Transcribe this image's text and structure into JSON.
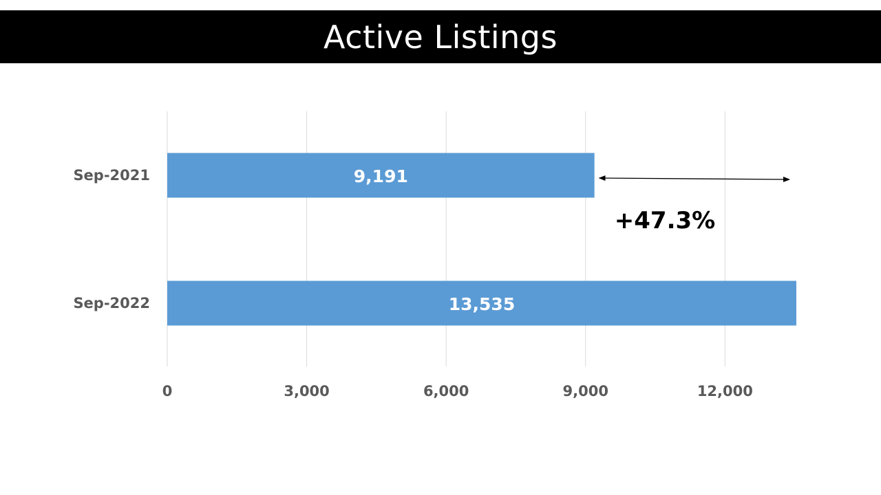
{
  "colors": {
    "bar": "#5B9BD5",
    "title_bg": "#000000",
    "title_text": "#FFFFFF",
    "grid": "#D9D9D9",
    "label": "#595959"
  },
  "chart_data": {
    "type": "bar",
    "orientation": "horizontal",
    "title": "Active Listings",
    "categories": [
      "Sep-2021",
      "Sep-2022"
    ],
    "values": [
      9191,
      13535
    ],
    "data_labels": [
      "9,191",
      "13,535"
    ],
    "x_ticks": [
      0,
      3000,
      6000,
      9000,
      12000
    ],
    "x_tick_labels": [
      "0",
      "3,000",
      "6,000",
      "9,000",
      "12,000"
    ],
    "xlim": [
      0,
      13535
    ],
    "grid": true,
    "legend": "none",
    "annotation": {
      "text": "+47.3%",
      "arrow_from": 9191,
      "arrow_to": 13535
    }
  }
}
